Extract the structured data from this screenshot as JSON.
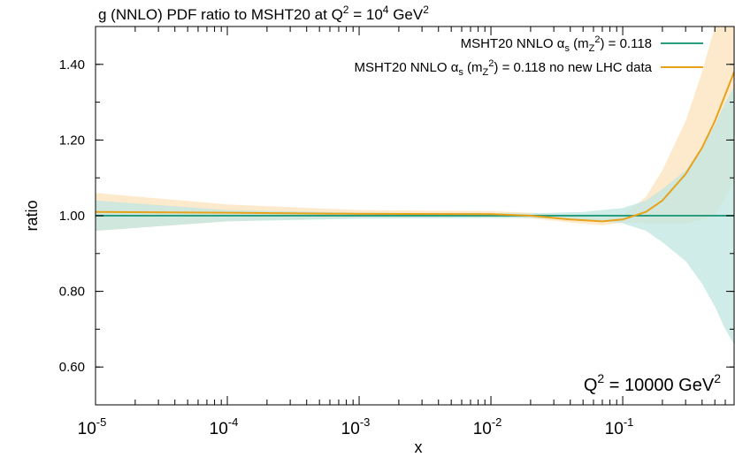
{
  "chart_data": {
    "type": "line",
    "title": {
      "base": "g (NNLO) PDF ratio to MSHT20 at Q",
      "sup1": "2",
      "mid": " = 10",
      "sup2": "4",
      "mid2": " GeV",
      "sup3": "2"
    },
    "xlabel": "x",
    "ylabel": "ratio",
    "x_scale": "log",
    "xlim": [
      1e-05,
      0.7
    ],
    "ylim": [
      0.5,
      1.5
    ],
    "x_ticks": [
      {
        "value": 1e-05,
        "base": "10",
        "exp": "-5"
      },
      {
        "value": 0.0001,
        "base": "10",
        "exp": "-4"
      },
      {
        "value": 0.001,
        "base": "10",
        "exp": "-3"
      },
      {
        "value": 0.01,
        "base": "10",
        "exp": "-2"
      },
      {
        "value": 0.1,
        "base": "10",
        "exp": "-1"
      }
    ],
    "y_ticks": [
      {
        "value": 0.6,
        "label": "0.60"
      },
      {
        "value": 0.8,
        "label": "0.80"
      },
      {
        "value": 1.0,
        "label": "1.00"
      },
      {
        "value": 1.2,
        "label": "1.20"
      },
      {
        "value": 1.4,
        "label": "1.40"
      }
    ],
    "annotation": {
      "base": "Q",
      "sup": "2",
      "rest": " = 10000 GeV",
      "sup2": "2"
    },
    "legend_position": "top-right",
    "series": [
      {
        "legend": {
          "p1": "MSHT20 NNLO ",
          "alpha": "α",
          "sub": "s",
          "p2": " (m",
          "sub2": "Z",
          "sup2": "2",
          "p3": ") = 0.118",
          "p4": ""
        },
        "color": "#2a9d7e",
        "band_color": "#bfe6e0",
        "x": [
          1e-05,
          0.0001,
          0.001,
          0.01,
          0.02,
          0.05,
          0.1,
          0.15,
          0.2,
          0.3,
          0.4,
          0.5,
          0.6,
          0.7
        ],
        "y": [
          1.0,
          1.0,
          1.0,
          1.0,
          1.0,
          1.0,
          1.0,
          1.0,
          1.0,
          1.0,
          1.0,
          1.0,
          1.0,
          1.0
        ],
        "upper": [
          1.04,
          1.015,
          1.008,
          1.006,
          1.006,
          1.01,
          1.02,
          1.04,
          1.07,
          1.12,
          1.18,
          1.24,
          1.3,
          1.34
        ],
        "lower": [
          0.96,
          0.985,
          0.992,
          0.994,
          0.994,
          0.99,
          0.98,
          0.96,
          0.93,
          0.88,
          0.82,
          0.76,
          0.7,
          0.66
        ]
      },
      {
        "legend": {
          "p1": "MSHT20 NNLO ",
          "alpha": "α",
          "sub": "s",
          "p2": " (m",
          "sub2": "Z",
          "sup2": "2",
          "p3": ") = 0.118",
          "p4": " no new LHC data"
        },
        "color": "#e8a21a",
        "band_color": "#fde6c4",
        "x": [
          1e-05,
          0.0001,
          0.001,
          0.01,
          0.02,
          0.04,
          0.07,
          0.1,
          0.15,
          0.2,
          0.3,
          0.4,
          0.5,
          0.6,
          0.7
        ],
        "y": [
          1.01,
          1.008,
          1.005,
          1.004,
          1.0,
          0.99,
          0.985,
          0.99,
          1.01,
          1.04,
          1.11,
          1.18,
          1.25,
          1.32,
          1.38
        ],
        "upper": [
          1.06,
          1.03,
          1.015,
          1.012,
          1.008,
          0.998,
          0.995,
          1.0,
          1.05,
          1.12,
          1.25,
          1.38,
          1.5,
          1.55,
          1.6
        ],
        "lower": [
          0.96,
          0.985,
          0.995,
          0.996,
          0.993,
          0.982,
          0.975,
          0.982,
          0.98,
          0.98,
          0.98,
          0.99,
          1.0,
          1.05,
          1.1
        ]
      }
    ]
  }
}
